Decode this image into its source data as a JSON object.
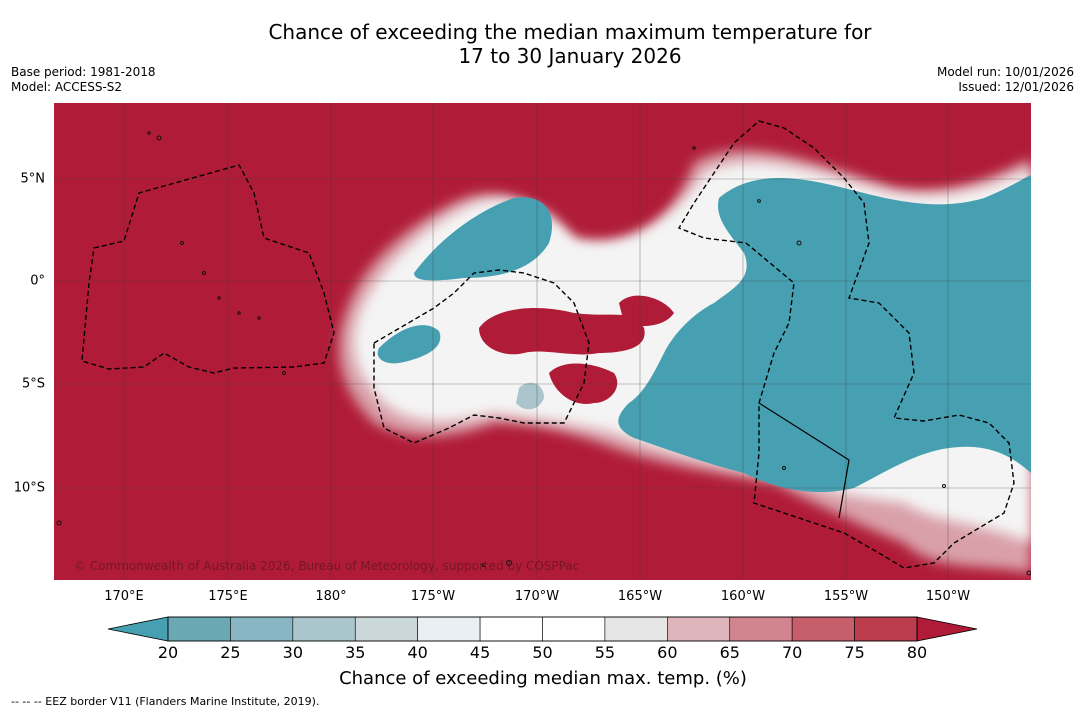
{
  "title_line1": "Chance of exceeding the median maximum temperature for",
  "title_line2": "17 to 30 January 2026",
  "meta_left": {
    "base_period": "Base period: 1981-2018",
    "model": "Model: ACCESS-S2"
  },
  "meta_right": {
    "model_run": "Model run: 10/01/2026",
    "issued": "Issued: 12/01/2026"
  },
  "copyright": "© Commonwealth of Australia 2026, Bureau of Meteorology, supported by COSPPac",
  "lat_labels": [
    "5°N",
    "0°",
    "5°S",
    "10°S"
  ],
  "lon_labels": [
    "170°E",
    "175°E",
    "180°",
    "175°W",
    "170°W",
    "165°W",
    "160°W",
    "155°W",
    "150°W"
  ],
  "colorbar": {
    "ticks": [
      "20",
      "25",
      "30",
      "35",
      "40",
      "45",
      "50",
      "55",
      "60",
      "65",
      "70",
      "75",
      "80"
    ],
    "colors": [
      "#6aa9b4",
      "#88b6c2",
      "#aac5cc",
      "#cad8da",
      "#e9eff2",
      "#ffffff",
      "#ffffff",
      "#e6e6e6",
      "#ddb5bb",
      "#d2858f",
      "#c75e6c",
      "#bb3d4e"
    ],
    "under_color": "#46a0b2",
    "over_color": "#b01c38",
    "label": "Chance of exceeding median max. temp. (%)"
  },
  "colors": {
    "warm": "#b01c38",
    "cool": "#46a0b2"
  },
  "footnote": "--  --  -- EEZ border V11 (Flanders Marine Institute, 2019)."
}
